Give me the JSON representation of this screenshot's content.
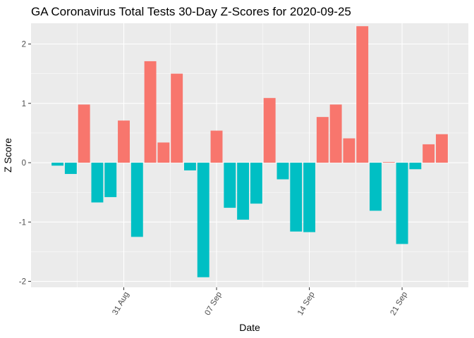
{
  "chart_data": {
    "type": "bar",
    "title": "GA Coronavirus Total Tests 30-Day Z-Scores for 2020-09-25",
    "xlabel": "Date",
    "ylabel": "Z Score",
    "ylim": [
      -2.1,
      2.35
    ],
    "yticks": [
      -2,
      -1,
      0,
      1,
      2
    ],
    "xlim": [
      "2020-08-24",
      "2020-09-26"
    ],
    "xticks": [
      {
        "date": "2020-08-31",
        "label": "31 Aug"
      },
      {
        "date": "2020-09-07",
        "label": "07 Sep"
      },
      {
        "date": "2020-09-14",
        "label": "14 Sep"
      },
      {
        "date": "2020-09-21",
        "label": "21 Sep"
      }
    ],
    "grid": true,
    "legend": "none",
    "colors": {
      "positive": "#F8766D",
      "negative": "#00BFC4",
      "panel": "#EBEBEB",
      "grid": "#FFFFFF"
    },
    "data": [
      {
        "date": "2020-08-26",
        "value": -0.05
      },
      {
        "date": "2020-08-27",
        "value": -0.19
      },
      {
        "date": "2020-08-28",
        "value": 0.98
      },
      {
        "date": "2020-08-29",
        "value": -0.67
      },
      {
        "date": "2020-08-30",
        "value": -0.58
      },
      {
        "date": "2020-08-31",
        "value": 0.71
      },
      {
        "date": "2020-09-01",
        "value": -1.25
      },
      {
        "date": "2020-09-02",
        "value": 1.71
      },
      {
        "date": "2020-09-03",
        "value": 0.34
      },
      {
        "date": "2020-09-04",
        "value": 1.5
      },
      {
        "date": "2020-09-05",
        "value": -0.13
      },
      {
        "date": "2020-09-06",
        "value": -1.93
      },
      {
        "date": "2020-09-07",
        "value": 0.54
      },
      {
        "date": "2020-09-08",
        "value": -0.76
      },
      {
        "date": "2020-09-09",
        "value": -0.96
      },
      {
        "date": "2020-09-10",
        "value": -0.69
      },
      {
        "date": "2020-09-11",
        "value": 1.09
      },
      {
        "date": "2020-09-12",
        "value": -0.28
      },
      {
        "date": "2020-09-13",
        "value": -1.16
      },
      {
        "date": "2020-09-14",
        "value": -1.17
      },
      {
        "date": "2020-09-15",
        "value": 0.77
      },
      {
        "date": "2020-09-16",
        "value": 0.98
      },
      {
        "date": "2020-09-17",
        "value": 0.41
      },
      {
        "date": "2020-09-18",
        "value": 2.3
      },
      {
        "date": "2020-09-19",
        "value": -0.81
      },
      {
        "date": "2020-09-20",
        "value": 0.01
      },
      {
        "date": "2020-09-21",
        "value": -1.37
      },
      {
        "date": "2020-09-22",
        "value": -0.11
      },
      {
        "date": "2020-09-23",
        "value": 0.31
      },
      {
        "date": "2020-09-24",
        "value": 0.48
      }
    ]
  }
}
